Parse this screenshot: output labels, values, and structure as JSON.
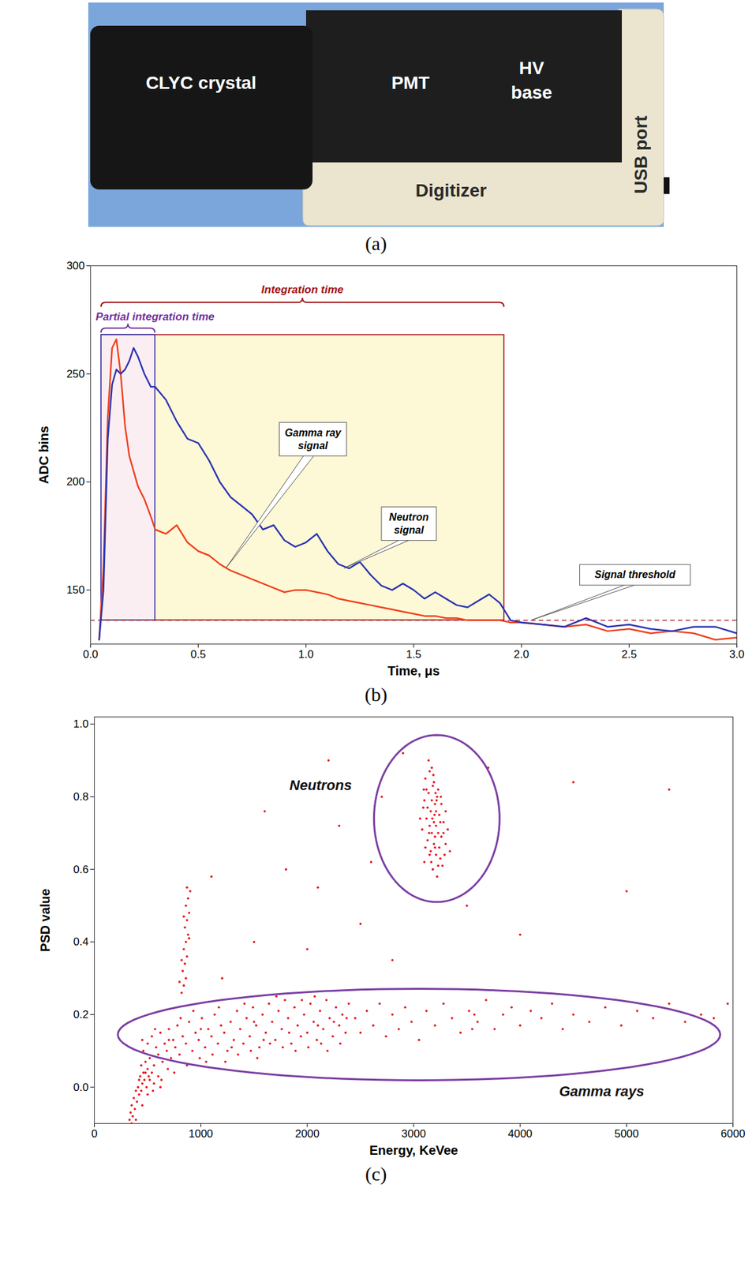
{
  "photo": {
    "labels": {
      "crystal": "CLYC crystal",
      "pmt": "PMT",
      "hv_base": "HV base",
      "digitizer": "Digitizer",
      "usb_port": "USB port"
    },
    "caption": "(a)"
  },
  "chart_data": [
    {
      "type": "line",
      "caption": "(b)",
      "x_label": "Time, μs",
      "y_label": "ADC bins",
      "xlim": [
        0,
        3
      ],
      "ylim": [
        125,
        300
      ],
      "xticks": [
        {
          "value": 0,
          "label": "0.0"
        },
        {
          "value": 0.5,
          "label": "0.5"
        },
        {
          "value": 1,
          "label": "1.0"
        },
        {
          "value": 1.5,
          "label": "1.5"
        },
        {
          "value": 2,
          "label": "2.0"
        },
        {
          "value": 2.5,
          "label": "2.5"
        },
        {
          "value": 3,
          "label": "3.0"
        }
      ],
      "yticks": [
        150,
        200,
        250,
        300
      ],
      "x": [
        0.04,
        0.06,
        0.08,
        0.1,
        0.12,
        0.14,
        0.16,
        0.18,
        0.2,
        0.22,
        0.25,
        0.28,
        0.3,
        0.35,
        0.4,
        0.45,
        0.5,
        0.55,
        0.6,
        0.65,
        0.7,
        0.75,
        0.8,
        0.85,
        0.9,
        0.95,
        1.0,
        1.05,
        1.1,
        1.15,
        1.2,
        1.25,
        1.3,
        1.35,
        1.4,
        1.45,
        1.5,
        1.55,
        1.6,
        1.65,
        1.7,
        1.75,
        1.8,
        1.85,
        1.9,
        1.95,
        2.0,
        2.1,
        2.2,
        2.3,
        2.4,
        2.5,
        2.6,
        2.7,
        2.8,
        2.9,
        3.0
      ],
      "series": [
        {
          "name": "Gamma ray signal",
          "color": "#f0401e",
          "values": [
            127,
            160,
            230,
            262,
            266,
            250,
            226,
            212,
            205,
            198,
            192,
            184,
            178,
            176,
            180,
            172,
            168,
            166,
            162,
            159,
            157,
            155,
            153,
            151,
            149,
            150,
            150,
            149,
            148,
            146,
            145,
            144,
            143,
            142,
            141,
            140,
            139,
            138,
            138,
            137,
            137,
            136,
            136,
            136,
            136,
            135,
            135,
            134,
            133,
            134,
            131,
            132,
            130,
            131,
            130,
            127,
            128
          ]
        },
        {
          "name": "Neutron signal",
          "color": "#2b35b0",
          "values": [
            127,
            150,
            220,
            245,
            252,
            250,
            252,
            256,
            262,
            258,
            250,
            244,
            244,
            238,
            228,
            220,
            218,
            210,
            200,
            193,
            189,
            185,
            178,
            180,
            173,
            170,
            172,
            176,
            168,
            162,
            160,
            163,
            157,
            152,
            150,
            153,
            150,
            146,
            149,
            146,
            143,
            142,
            145,
            148,
            144,
            136,
            135,
            134,
            133,
            137,
            133,
            134,
            132,
            131,
            133,
            133,
            130
          ]
        }
      ],
      "regions": [
        {
          "label": "Integration time",
          "x": [
            0.05,
            1.92
          ],
          "y": [
            136,
            268
          ]
        },
        {
          "label": "Partial integration time",
          "x": [
            0.05,
            0.3
          ],
          "y": [
            136,
            268
          ]
        }
      ],
      "threshold": 136,
      "annotations": [
        {
          "text": "Gamma ray signal",
          "x": 0.63,
          "y": 160
        },
        {
          "text": "Neutron signal",
          "x": 1.18,
          "y": 160
        },
        {
          "text": "Signal threshold",
          "x": 2.05,
          "y": 136
        }
      ]
    },
    {
      "type": "scatter",
      "caption": "(c)",
      "x_label": "Energy, KeVee",
      "y_label": "PSD value",
      "xlim": [
        0,
        6000
      ],
      "ylim": [
        -0.1,
        1.02
      ],
      "xticks": [
        0,
        1000,
        2000,
        3000,
        4000,
        5000,
        6000
      ],
      "yticks": [
        {
          "value": 0,
          "label": "0.0"
        },
        {
          "value": 0.2,
          "label": "0.2"
        },
        {
          "value": 0.4,
          "label": "0.4"
        },
        {
          "value": 0.6,
          "label": "0.6"
        },
        {
          "value": 0.8,
          "label": "0.8"
        },
        {
          "value": 1,
          "label": "1.0"
        }
      ],
      "color": "#e8141c",
      "x": [
        3100,
        3150,
        3200,
        3250,
        3180,
        3220,
        3130,
        3170,
        3210,
        3260,
        3300,
        3080,
        3120,
        3160,
        3200,
        3240,
        3280,
        3320,
        3100,
        3140,
        3180,
        3220,
        3260,
        3300,
        3110,
        3150,
        3190,
        3230,
        3090,
        3060,
        3340,
        3270,
        3190,
        3150,
        3230,
        3210,
        3170,
        3130,
        3250,
        3190,
        3160,
        3240,
        3200,
        3120,
        3170,
        3140,
        3210,
        3280,
        3110,
        3230,
        3195,
        3175,
        3215,
        3145,
        3255,
        3165,
        3290,
        3095,
        3185,
        3205,
        420,
        440,
        460,
        480,
        500,
        520,
        540,
        560,
        580,
        600,
        620,
        640,
        660,
        680,
        700,
        720,
        740,
        760,
        780,
        800,
        830,
        860,
        890,
        920,
        950,
        980,
        1010,
        1040,
        1070,
        1100,
        1130,
        1160,
        1190,
        1220,
        1250,
        1280,
        1310,
        1340,
        1370,
        1400,
        1430,
        1460,
        1490,
        1520,
        1550,
        1580,
        1610,
        1640,
        1670,
        1700,
        1730,
        1760,
        1790,
        1820,
        1850,
        1880,
        1910,
        1940,
        1970,
        2000,
        2030,
        2060,
        2090,
        2120,
        2150,
        2180,
        2210,
        2240,
        2270,
        2300,
        2330,
        2360,
        2390,
        450,
        510,
        570,
        630,
        690,
        750,
        810,
        870,
        930,
        990,
        1050,
        1110,
        1170,
        1230,
        1290,
        1350,
        1410,
        1470,
        1530,
        1590,
        1650,
        1710,
        1770,
        1830,
        1890,
        1950,
        2010,
        2070,
        2130,
        2190,
        2250,
        2310,
        2370,
        1000,
        1500,
        2100,
        700,
        330,
        340,
        350,
        360,
        370,
        380,
        390,
        400,
        410,
        420,
        430,
        440,
        450,
        460,
        470,
        480,
        490,
        500,
        520,
        540,
        560,
        600,
        350,
        390,
        450,
        500,
        550,
        620,
        820,
        840,
        860,
        830,
        850,
        870,
        840,
        860,
        880,
        850,
        870,
        890,
        860,
        880,
        900,
        870,
        840,
        890,
        820,
        800,
        2450,
        2500,
        2560,
        2620,
        2680,
        2740,
        2800,
        2860,
        2920,
        2980,
        3050,
        3120,
        3200,
        3280,
        3360,
        3440,
        3520,
        3600,
        3680,
        3760,
        3840,
        3920,
        4000,
        4100,
        4200,
        4300,
        4400,
        4500,
        4650,
        4800,
        4950,
        5100,
        5250,
        5400,
        5550,
        5700,
        5820,
        5950,
        3550,
        3570,
        1500,
        1800,
        2100,
        2300,
        2500,
        2700,
        2900,
        2800,
        1200,
        2000,
        2600,
        3500,
        4500,
        5000,
        5400,
        4000,
        2200,
        1600,
        3700,
        1100
      ],
      "values": [
        0.62,
        0.64,
        0.66,
        0.63,
        0.6,
        0.58,
        0.68,
        0.7,
        0.72,
        0.69,
        0.67,
        0.71,
        0.74,
        0.76,
        0.78,
        0.75,
        0.73,
        0.71,
        0.79,
        0.81,
        0.83,
        0.8,
        0.78,
        0.76,
        0.85,
        0.87,
        0.84,
        0.82,
        0.77,
        0.74,
        0.65,
        0.61,
        0.73,
        0.72,
        0.7,
        0.76,
        0.79,
        0.77,
        0.73,
        0.67,
        0.65,
        0.66,
        0.69,
        0.82,
        0.88,
        0.9,
        0.64,
        0.7,
        0.66,
        0.61,
        0.75,
        0.74,
        0.79,
        0.7,
        0.8,
        0.62,
        0.64,
        0.82,
        0.86,
        0.81,
        0.02,
        0.06,
        0.1,
        0.04,
        0.12,
        0.08,
        0.14,
        0.06,
        0.11,
        0.09,
        0.15,
        0.07,
        0.12,
        0.1,
        0.16,
        0.08,
        0.13,
        0.11,
        0.17,
        0.09,
        0.14,
        0.12,
        0.18,
        0.1,
        0.15,
        0.13,
        0.19,
        0.11,
        0.16,
        0.14,
        0.2,
        0.12,
        0.17,
        0.15,
        0.1,
        0.18,
        0.13,
        0.21,
        0.16,
        0.12,
        0.19,
        0.14,
        0.22,
        0.17,
        0.11,
        0.2,
        0.15,
        0.23,
        0.18,
        0.13,
        0.21,
        0.16,
        0.24,
        0.19,
        0.12,
        0.22,
        0.17,
        0.14,
        0.2,
        0.15,
        0.23,
        0.18,
        0.13,
        0.21,
        0.16,
        0.24,
        0.19,
        0.14,
        0.22,
        0.17,
        0.2,
        0.15,
        0.23,
        0.13,
        0.03,
        0.16,
        0.02,
        0.05,
        0.04,
        0.19,
        0.06,
        0.21,
        0.08,
        0.07,
        0.09,
        0.22,
        0.07,
        0.11,
        0.09,
        0.23,
        0.1,
        0.08,
        0.13,
        0.12,
        0.25,
        0.11,
        0.15,
        0.1,
        0.24,
        0.11,
        0.25,
        0.12,
        0.1,
        0.18,
        0.12,
        0.19,
        0.16,
        0.18,
        0.17,
        0.13,
        -0.09,
        -0.07,
        -0.05,
        -0.08,
        -0.03,
        -0.06,
        -0.01,
        -0.04,
        0.0,
        -0.02,
        0.03,
        -0.01,
        0.01,
        0.04,
        0.02,
        0.07,
        0.0,
        0.05,
        0.02,
        0.04,
        0.01,
        0.03,
        -0.1,
        -0.09,
        -0.05,
        -0.02,
        -0.01,
        0.0,
        0.26,
        0.28,
        0.3,
        0.32,
        0.34,
        0.36,
        0.38,
        0.4,
        0.42,
        0.44,
        0.46,
        0.48,
        0.5,
        0.52,
        0.54,
        0.55,
        0.47,
        0.41,
        0.35,
        0.29,
        0.19,
        0.15,
        0.21,
        0.17,
        0.23,
        0.14,
        0.2,
        0.16,
        0.22,
        0.18,
        0.13,
        0.21,
        0.17,
        0.23,
        0.19,
        0.15,
        0.21,
        0.18,
        0.24,
        0.16,
        0.2,
        0.22,
        0.17,
        0.21,
        0.19,
        0.23,
        0.16,
        0.2,
        0.18,
        0.22,
        0.17,
        0.21,
        0.19,
        0.23,
        0.18,
        0.2,
        0.19,
        0.23,
        0.16,
        0.2,
        0.4,
        0.6,
        0.55,
        0.72,
        0.45,
        0.8,
        0.92,
        0.35,
        0.3,
        0.38,
        0.62,
        0.5,
        0.84,
        0.54,
        0.82,
        0.42,
        0.9,
        0.76,
        0.88,
        0.58
      ],
      "regions": [
        {
          "label": "Neutrons",
          "cx": 3217,
          "cy": 0.74,
          "rx": 590,
          "ry": 0.23
        },
        {
          "label": "Gamma rays",
          "cx": 3050,
          "cy": 0.145,
          "rx": 2830,
          "ry": 0.126
        }
      ]
    }
  ]
}
